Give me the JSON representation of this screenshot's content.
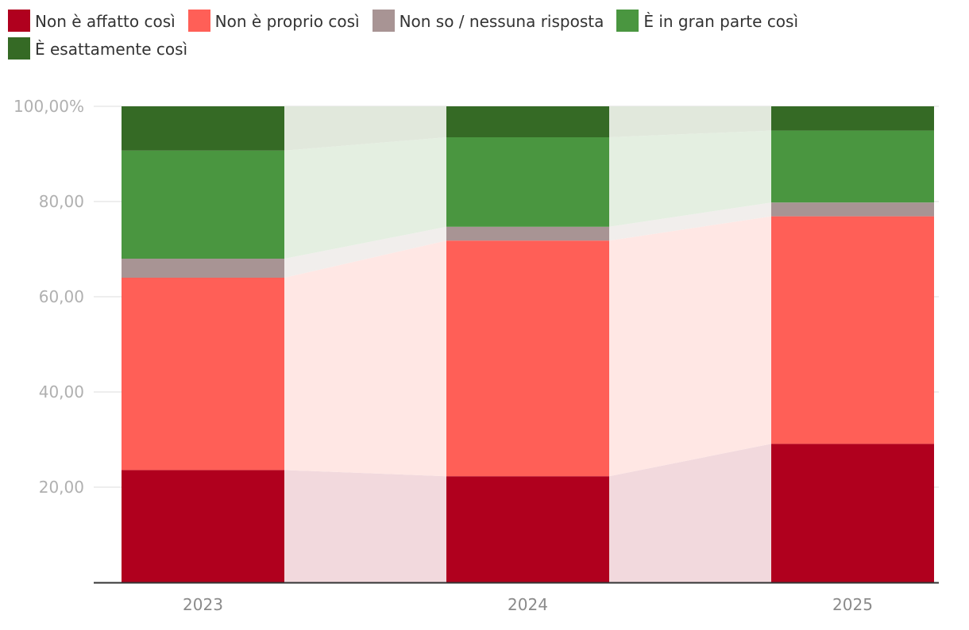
{
  "chart_data": {
    "type": "bar",
    "stacked": true,
    "categories": [
      "2023",
      "2024",
      "2025"
    ],
    "ylim": [
      0,
      100
    ],
    "yticks": [
      {
        "value": 20,
        "label": "20,00"
      },
      {
        "value": 40,
        "label": "40,00"
      },
      {
        "value": 60,
        "label": "60,00"
      },
      {
        "value": 80,
        "label": "80,00"
      },
      {
        "value": 100,
        "label": "100,00%"
      }
    ],
    "legend_position": "top",
    "series": [
      {
        "name": "Non è affatto così",
        "color": "#b0001e",
        "band_color": "#f2d9dd",
        "values": [
          23.6,
          22.3,
          29.1
        ]
      },
      {
        "name": "Non è proprio così",
        "color": "#ff5f57",
        "band_color": "#ffe7e4",
        "values": [
          40.4,
          49.5,
          47.8
        ]
      },
      {
        "name": "Non so / nessuna risposta",
        "color": "#a89494",
        "band_color": "#f1eeec",
        "values": [
          4.0,
          2.9,
          2.9
        ]
      },
      {
        "name": "È in gran parte così",
        "color": "#4a9640",
        "band_color": "#e4efe1",
        "values": [
          22.7,
          18.8,
          15.1
        ]
      },
      {
        "name": "È esattamente così",
        "color": "#356a25",
        "band_color": "#e1e8dc",
        "values": [
          9.3,
          6.5,
          5.1
        ]
      }
    ]
  }
}
